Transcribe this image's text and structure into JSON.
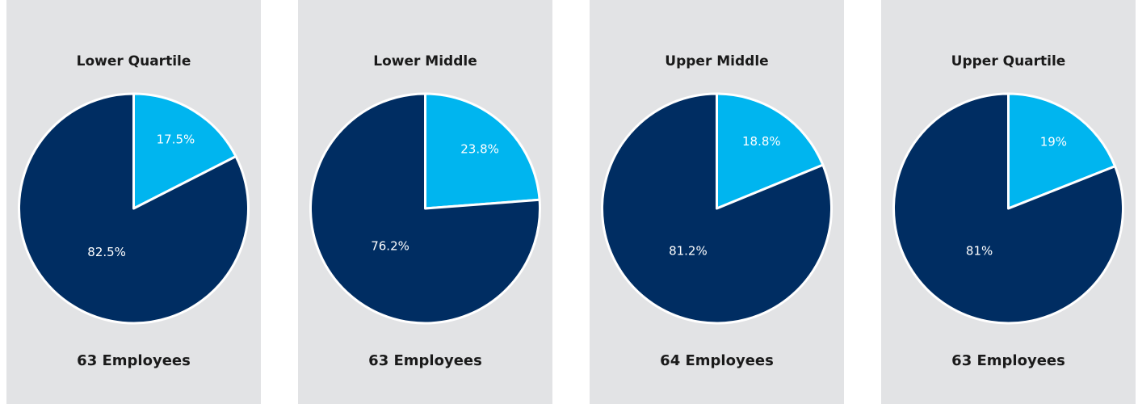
{
  "chart_data": [
    {
      "type": "pie",
      "title": "Lower Quartile",
      "values": [
        17.5,
        82.5
      ],
      "value_labels": [
        "17.5%",
        "82.5%"
      ],
      "colors": [
        "#00b5ef",
        "#002d62"
      ],
      "footer": "63 Employees"
    },
    {
      "type": "pie",
      "title": "Lower Middle",
      "values": [
        23.8,
        76.2
      ],
      "value_labels": [
        "23.8%",
        "76.2%"
      ],
      "colors": [
        "#00b5ef",
        "#002d62"
      ],
      "footer": "63 Employees"
    },
    {
      "type": "pie",
      "title": "Upper Middle",
      "values": [
        18.8,
        81.2
      ],
      "value_labels": [
        "18.8%",
        "81.2%"
      ],
      "colors": [
        "#00b5ef",
        "#002d62"
      ],
      "footer": "64 Employees"
    },
    {
      "type": "pie",
      "title": "Upper Quartile",
      "values": [
        19,
        81
      ],
      "value_labels": [
        "19%",
        "81%"
      ],
      "colors": [
        "#00b5ef",
        "#002d62"
      ],
      "footer": "63 Employees"
    }
  ]
}
